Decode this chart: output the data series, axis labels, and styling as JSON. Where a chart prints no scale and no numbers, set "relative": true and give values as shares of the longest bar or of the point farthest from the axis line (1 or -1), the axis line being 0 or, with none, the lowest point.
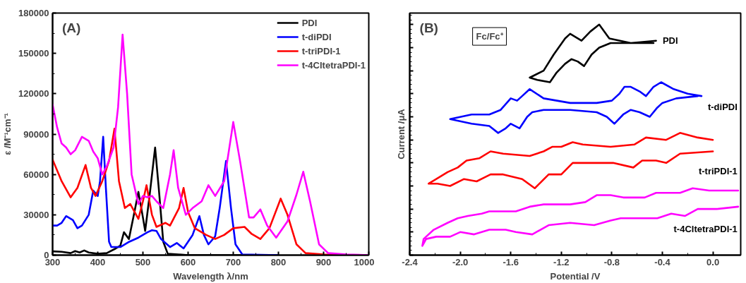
{
  "chart_data": [
    {
      "type": "line",
      "xlabel": "Wavelength λ/nm",
      "ylabel": "ε /M⁻¹cm⁻¹",
      "annotations": [
        "(A)"
      ],
      "legend": "top right",
      "xlim": [
        300,
        1000
      ],
      "xticks": [
        300,
        400,
        500,
        600,
        700,
        800,
        900,
        1000
      ],
      "ylim": [
        0,
        180000
      ],
      "yticks": [
        0,
        30000,
        60000,
        90000,
        120000,
        150000,
        180000
      ],
      "series": [
        {
          "name": "PDI",
          "color": "#000000",
          "x": [
            300,
            320,
            340,
            350,
            360,
            370,
            380,
            400,
            420,
            440,
            450,
            458,
            469,
            480,
            490,
            500,
            505,
            515,
            527,
            535,
            545,
            555,
            600,
            700,
            800
          ],
          "values": [
            2800,
            2500,
            1500,
            3000,
            2000,
            3500,
            2000,
            1000,
            1500,
            5000,
            7000,
            17000,
            12000,
            30000,
            47000,
            28000,
            18000,
            45000,
            80000,
            50000,
            10000,
            1000,
            0,
            0,
            0
          ]
        },
        {
          "name": "t-diPDI",
          "color": "#0000ff",
          "x": [
            300,
            310,
            320,
            330,
            345,
            355,
            365,
            380,
            390,
            400,
            405,
            412,
            418,
            425,
            430,
            450,
            470,
            490,
            510,
            520,
            530,
            540,
            560,
            575,
            590,
            610,
            625,
            635,
            645,
            660,
            670,
            684,
            695,
            705,
            720,
            800
          ],
          "values": [
            22000,
            22000,
            24000,
            29000,
            26000,
            20000,
            22000,
            30000,
            48000,
            44000,
            55000,
            88000,
            50000,
            10000,
            6000,
            6000,
            10000,
            13000,
            17000,
            18500,
            18000,
            12000,
            6000,
            9000,
            5000,
            15000,
            29000,
            15000,
            8000,
            14000,
            35000,
            70000,
            35000,
            8000,
            500,
            0
          ]
        },
        {
          "name": "t-triPDI-1",
          "color": "#ff0000",
          "x": [
            300,
            320,
            340,
            355,
            373,
            385,
            395,
            410,
            425,
            437,
            447,
            460,
            472,
            490,
            500,
            508,
            520,
            530,
            550,
            560,
            580,
            590,
            600,
            615,
            640,
            660,
            680,
            700,
            725,
            740,
            760,
            780,
            805,
            820,
            840,
            860,
            900,
            950
          ],
          "values": [
            71000,
            55000,
            43000,
            50000,
            67000,
            50000,
            44000,
            55000,
            70000,
            94000,
            55000,
            35000,
            38000,
            27000,
            40000,
            52000,
            30000,
            21000,
            24000,
            22000,
            35000,
            50000,
            32000,
            20000,
            15000,
            12000,
            15000,
            20000,
            21000,
            16000,
            12000,
            20000,
            42000,
            30000,
            8000,
            1500,
            500,
            0
          ]
        },
        {
          "name": "t-4CltetraPDI-1",
          "color": "#ff00ff",
          "x": [
            300,
            310,
            320,
            330,
            340,
            350,
            365,
            380,
            390,
            400,
            410,
            420,
            435,
            445,
            455,
            465,
            475,
            490,
            500,
            510,
            520,
            530,
            545,
            560,
            568,
            578,
            595,
            610,
            630,
            645,
            660,
            680,
            700,
            715,
            735,
            745,
            760,
            775,
            795,
            820,
            840,
            855,
            870,
            890,
            910,
            950,
            1000
          ],
          "values": [
            112000,
            95000,
            83000,
            80000,
            75000,
            78000,
            88000,
            85000,
            77000,
            72000,
            60000,
            66000,
            80000,
            110000,
            164000,
            120000,
            60000,
            38000,
            44000,
            43000,
            44000,
            40000,
            35000,
            60000,
            78000,
            50000,
            30000,
            35000,
            40000,
            52000,
            44000,
            55000,
            99000,
            70000,
            28000,
            28000,
            34000,
            22000,
            13000,
            25000,
            45000,
            62000,
            40000,
            8000,
            1500,
            500,
            0
          ]
        }
      ]
    },
    {
      "type": "line",
      "xlabel": "Potential /V",
      "ylabel": "Current /μA",
      "annotations": [
        "(B)",
        "Fc/Fc⁺"
      ],
      "relative": true,
      "tick_labels": "x",
      "xlim": [
        -2.4,
        0.22
      ],
      "xticks": [
        {
          "value": -2.4,
          "label": "-2.4"
        },
        {
          "value": -2.0,
          "label": "-2.0"
        },
        {
          "value": -1.6,
          "label": "-1.6"
        },
        {
          "value": -1.2,
          "label": "-1.2"
        },
        {
          "value": -0.8,
          "label": "-0.8"
        },
        {
          "value": -0.4,
          "label": "-0.4"
        },
        {
          "value": 0.0,
          "label": "0.0"
        }
      ],
      "series": [
        {
          "name": "PDI",
          "color": "#000000",
          "x": [
            -0.45,
            -0.65,
            -0.82,
            -0.9,
            -0.97,
            -1.04,
            -1.13,
            -1.17,
            -1.26,
            -1.34,
            -1.45,
            -1.39,
            -1.29,
            -1.24,
            -1.17,
            -1.12,
            -1.07,
            -1.02,
            -0.96,
            -0.9,
            -0.81,
            -0.65,
            -0.47
          ],
          "values": [
            0.93,
            0.92,
            0.94,
            1.0,
            0.97,
            0.93,
            0.96,
            0.94,
            0.87,
            0.8,
            0.77,
            0.76,
            0.75,
            0.79,
            0.83,
            0.85,
            0.84,
            0.82,
            0.87,
            0.9,
            0.92,
            0.92,
            0.92
          ]
        },
        {
          "name": "t-diPDI",
          "color": "#0000ff",
          "x": [
            -0.09,
            -0.2,
            -0.31,
            -0.41,
            -0.47,
            -0.53,
            -0.58,
            -0.65,
            -0.7,
            -0.74,
            -0.8,
            -0.92,
            -1.13,
            -1.34,
            -1.45,
            -1.51,
            -1.55,
            -1.6,
            -1.68,
            -1.77,
            -1.91,
            -2.08,
            -1.91,
            -1.77,
            -1.7,
            -1.64,
            -1.6,
            -1.53,
            -1.47,
            -1.43,
            -1.34,
            -1.13,
            -0.92,
            -0.84,
            -0.78,
            -0.71,
            -0.65,
            -0.58,
            -0.5,
            -0.44,
            -0.4,
            -0.29,
            -0.12
          ],
          "values": [
            0.69,
            0.7,
            0.72,
            0.75,
            0.73,
            0.69,
            0.71,
            0.73,
            0.73,
            0.7,
            0.67,
            0.66,
            0.66,
            0.68,
            0.72,
            0.69,
            0.67,
            0.68,
            0.63,
            0.61,
            0.61,
            0.59,
            0.57,
            0.56,
            0.53,
            0.55,
            0.57,
            0.55,
            0.6,
            0.62,
            0.63,
            0.63,
            0.62,
            0.6,
            0.57,
            0.61,
            0.63,
            0.62,
            0.6,
            0.64,
            0.66,
            0.68,
            0.69
          ]
        },
        {
          "name": "t-triPDI-1",
          "color": "#ff0000",
          "x": [
            0.0,
            -0.12,
            -0.26,
            -0.37,
            -0.53,
            -0.62,
            -0.81,
            -1.03,
            -1.11,
            -1.2,
            -1.27,
            -1.34,
            -1.45,
            -1.66,
            -1.76,
            -1.85,
            -1.95,
            -2.02,
            -2.1,
            -2.25,
            -2.18,
            -2.08,
            -1.97,
            -1.87,
            -1.76,
            -1.66,
            -1.51,
            -1.41,
            -1.3,
            -1.2,
            -1.11,
            -0.92,
            -0.79,
            -0.63,
            -0.56,
            -0.45,
            -0.37,
            -0.26,
            0.0
          ],
          "values": [
            0.5,
            0.51,
            0.53,
            0.5,
            0.51,
            0.48,
            0.47,
            0.48,
            0.49,
            0.47,
            0.47,
            0.45,
            0.43,
            0.44,
            0.45,
            0.42,
            0.41,
            0.38,
            0.36,
            0.31,
            0.31,
            0.3,
            0.33,
            0.32,
            0.35,
            0.35,
            0.33,
            0.29,
            0.35,
            0.35,
            0.4,
            0.4,
            0.4,
            0.38,
            0.41,
            0.41,
            0.4,
            0.44,
            0.45
          ]
        },
        {
          "name": "t-4CltetraPDI-1",
          "color": "#ff00ff",
          "x": [
            0.2,
            0.07,
            -0.03,
            -0.16,
            -0.26,
            -0.39,
            -0.45,
            -0.54,
            -0.71,
            -0.81,
            -0.92,
            -1.01,
            -1.13,
            -1.34,
            -1.45,
            -1.56,
            -1.77,
            -1.83,
            -1.94,
            -2.02,
            -2.1,
            -2.21,
            -2.29,
            -2.3,
            -2.27,
            -2.19,
            -2.08,
            -2.0,
            -1.89,
            -1.77,
            -1.64,
            -1.56,
            -1.43,
            -1.3,
            -1.13,
            -0.94,
            -0.81,
            -0.73,
            -0.54,
            -0.44,
            -0.33,
            -0.22,
            -0.12,
            0.03,
            0.2
          ],
          "values": [
            0.28,
            0.28,
            0.28,
            0.29,
            0.27,
            0.27,
            0.27,
            0.25,
            0.25,
            0.26,
            0.26,
            0.23,
            0.22,
            0.22,
            0.21,
            0.19,
            0.19,
            0.18,
            0.17,
            0.16,
            0.14,
            0.11,
            0.07,
            0.04,
            0.07,
            0.08,
            0.08,
            0.1,
            0.09,
            0.11,
            0.11,
            0.1,
            0.09,
            0.13,
            0.14,
            0.13,
            0.15,
            0.16,
            0.16,
            0.16,
            0.18,
            0.17,
            0.2,
            0.2,
            0.21
          ]
        }
      ]
    }
  ]
}
